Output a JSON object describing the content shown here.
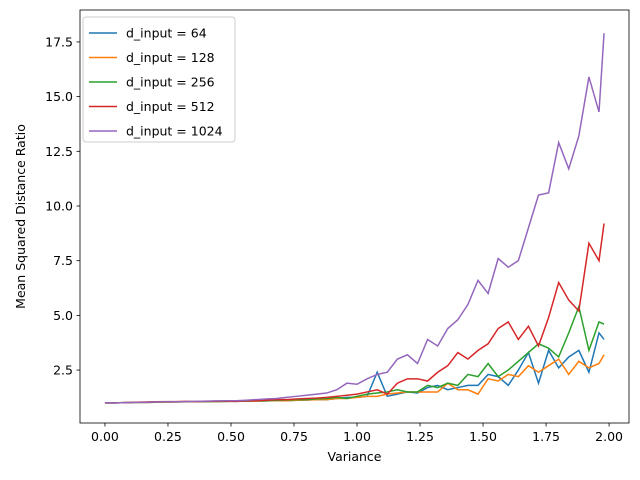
{
  "chart_data": {
    "type": "line",
    "xlabel": "Variance",
    "ylabel": "Mean Squared Distance Ratio",
    "x": [
      0,
      0.04,
      0.08,
      0.12,
      0.16,
      0.2,
      0.24,
      0.28,
      0.32,
      0.36,
      0.4,
      0.44,
      0.48,
      0.52,
      0.56,
      0.6,
      0.64,
      0.68,
      0.72,
      0.76,
      0.8,
      0.84,
      0.88,
      0.92,
      0.96,
      1.0,
      1.04,
      1.08,
      1.12,
      1.16,
      1.2,
      1.24,
      1.28,
      1.32,
      1.36,
      1.4,
      1.44,
      1.48,
      1.52,
      1.56,
      1.6,
      1.64,
      1.68,
      1.72,
      1.76,
      1.8,
      1.84,
      1.88,
      1.92,
      1.96,
      1.98
    ],
    "series": [
      {
        "name": "d_input = 64",
        "color": "#1f77b4",
        "values": [
          1.0,
          1.0,
          1.01,
          1.02,
          1.02,
          1.03,
          1.03,
          1.04,
          1.05,
          1.05,
          1.06,
          1.06,
          1.07,
          1.07,
          1.08,
          1.08,
          1.09,
          1.1,
          1.1,
          1.12,
          1.13,
          1.15,
          1.15,
          1.2,
          1.25,
          1.25,
          1.3,
          2.4,
          1.3,
          1.4,
          1.5,
          1.45,
          1.7,
          1.8,
          1.6,
          1.7,
          1.8,
          1.8,
          2.3,
          2.2,
          1.8,
          2.5,
          3.3,
          1.9,
          3.4,
          2.6,
          3.1,
          3.4,
          2.4,
          4.2,
          3.9
        ]
      },
      {
        "name": "d_input = 128",
        "color": "#ff7f0e",
        "values": [
          1.0,
          1.0,
          1.01,
          1.02,
          1.02,
          1.03,
          1.03,
          1.04,
          1.05,
          1.05,
          1.06,
          1.06,
          1.07,
          1.07,
          1.08,
          1.08,
          1.09,
          1.1,
          1.1,
          1.12,
          1.13,
          1.15,
          1.15,
          1.2,
          1.2,
          1.25,
          1.3,
          1.3,
          1.4,
          1.45,
          1.5,
          1.5,
          1.5,
          1.5,
          1.9,
          1.6,
          1.6,
          1.4,
          2.1,
          2.0,
          2.3,
          2.2,
          2.7,
          2.4,
          2.7,
          3.0,
          2.3,
          2.9,
          2.6,
          2.8,
          3.2
        ]
      },
      {
        "name": "d_input = 256",
        "color": "#2ca02c",
        "values": [
          1.0,
          1.0,
          1.01,
          1.02,
          1.03,
          1.04,
          1.04,
          1.05,
          1.05,
          1.06,
          1.06,
          1.07,
          1.07,
          1.08,
          1.08,
          1.1,
          1.1,
          1.12,
          1.13,
          1.15,
          1.15,
          1.18,
          1.2,
          1.25,
          1.2,
          1.3,
          1.4,
          1.45,
          1.5,
          1.6,
          1.5,
          1.5,
          1.8,
          1.7,
          1.9,
          1.8,
          2.3,
          2.2,
          2.8,
          2.2,
          2.5,
          2.9,
          3.3,
          3.7,
          3.5,
          3.1,
          4.2,
          5.4,
          3.4,
          4.7,
          4.6
        ]
      },
      {
        "name": "d_input = 512",
        "color": "#d62728",
        "values": [
          1.0,
          1.0,
          1.01,
          1.03,
          1.04,
          1.05,
          1.06,
          1.06,
          1.07,
          1.06,
          1.07,
          1.08,
          1.08,
          1.07,
          1.09,
          1.1,
          1.12,
          1.15,
          1.15,
          1.18,
          1.2,
          1.22,
          1.25,
          1.3,
          1.35,
          1.4,
          1.5,
          1.6,
          1.4,
          1.9,
          2.1,
          2.1,
          2.0,
          2.4,
          2.7,
          3.3,
          3.0,
          3.4,
          3.7,
          4.4,
          4.7,
          3.9,
          4.5,
          3.6,
          4.9,
          6.5,
          5.7,
          5.2,
          8.3,
          7.5,
          9.2
        ]
      },
      {
        "name": "d_input = 1024",
        "color": "#9467bd",
        "values": [
          1.0,
          1.0,
          1.01,
          1.02,
          1.03,
          1.04,
          1.05,
          1.05,
          1.06,
          1.07,
          1.08,
          1.09,
          1.1,
          1.1,
          1.12,
          1.15,
          1.18,
          1.2,
          1.25,
          1.3,
          1.35,
          1.4,
          1.45,
          1.6,
          1.9,
          1.85,
          2.1,
          2.3,
          2.4,
          3.0,
          3.2,
          2.8,
          3.9,
          3.6,
          4.4,
          4.8,
          5.5,
          6.6,
          6.0,
          7.6,
          7.2,
          7.5,
          9.0,
          10.5,
          10.6,
          12.9,
          11.7,
          13.2,
          15.9,
          14.3,
          17.9
        ]
      }
    ],
    "xlim": [
      -0.099,
      2.079
    ],
    "ylim": [
      0.08,
      18.96
    ],
    "xticks": [
      {
        "value": 0,
        "label": "0.00"
      },
      {
        "value": 0.25,
        "label": "0.25"
      },
      {
        "value": 0.5,
        "label": "0.50"
      },
      {
        "value": 0.75,
        "label": "0.75"
      },
      {
        "value": 1,
        "label": "1.00"
      },
      {
        "value": 1.25,
        "label": "1.25"
      },
      {
        "value": 1.5,
        "label": "1.50"
      },
      {
        "value": 1.75,
        "label": "1.75"
      },
      {
        "value": 2,
        "label": "2.00"
      }
    ],
    "yticks": [
      2.5,
      {
        "value": 5,
        "label": "5.0"
      },
      7.5,
      {
        "value": 10,
        "label": "10.0"
      },
      12.5,
      {
        "value": 15,
        "label": "15.0"
      },
      17.5
    ],
    "legend": "upper left"
  }
}
